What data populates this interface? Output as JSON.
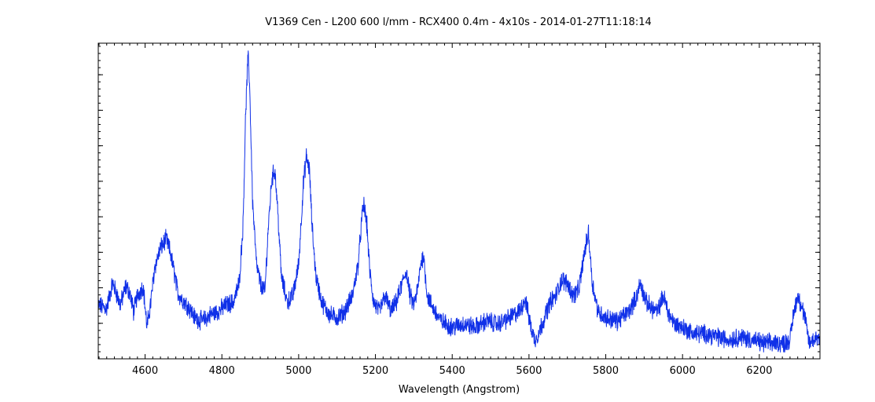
{
  "chart_data": {
    "type": "line",
    "title": "V1369 Cen - L200 600 l/mm - RCX400 0.4m - 4x10s - 2014-01-27T11:18:14",
    "xlabel": "Wavelength (Angstrom)",
    "ylabel": "",
    "xlim": [
      4478,
      6358
    ],
    "ylim": [
      0.0,
      1.0
    ],
    "y_tick_labels_shown": false,
    "grid": false,
    "x_ticks": [
      4600,
      4800,
      5000,
      5200,
      5400,
      5600,
      5800,
      6000,
      6200
    ],
    "x_tick_labels": [
      "4600",
      "4800",
      "5000",
      "5200",
      "5400",
      "5600",
      "5800",
      "6000",
      "6200"
    ],
    "series": [
      {
        "color": "#1030e8",
        "x": [
          4478,
          4500,
          4515,
          4525,
          4535,
          4550,
          4560,
          4570,
          4580,
          4595,
          4605,
          4615,
          4625,
          4640,
          4655,
          4665,
          4675,
          4685,
          4695,
          4710,
          4730,
          4750,
          4770,
          4790,
          4810,
          4830,
          4845,
          4855,
          4862,
          4868,
          4872,
          4880,
          4890,
          4900,
          4912,
          4920,
          4930,
          4938,
          4945,
          4955,
          4970,
          4985,
          5000,
          5012,
          5020,
          5028,
          5035,
          5045,
          5060,
          5080,
          5100,
          5120,
          5140,
          5155,
          5165,
          5170,
          5178,
          5185,
          5195,
          5210,
          5225,
          5240,
          5255,
          5270,
          5280,
          5290,
          5300,
          5310,
          5318,
          5325,
          5335,
          5350,
          5370,
          5400,
          5430,
          5460,
          5490,
          5520,
          5550,
          5575,
          5590,
          5605,
          5615,
          5625,
          5640,
          5655,
          5670,
          5685,
          5700,
          5715,
          5730,
          5745,
          5755,
          5765,
          5780,
          5800,
          5830,
          5860,
          5878,
          5890,
          5905,
          5920,
          5935,
          5950,
          5965,
          5980,
          6000,
          6030,
          6060,
          6090,
          6120,
          6150,
          6180,
          6210,
          6240,
          6265,
          6280,
          6290,
          6300,
          6310,
          6320,
          6330,
          6340,
          6350,
          6358
        ],
        "y": [
          0.17,
          0.16,
          0.24,
          0.21,
          0.17,
          0.23,
          0.21,
          0.15,
          0.2,
          0.23,
          0.1,
          0.18,
          0.29,
          0.35,
          0.38,
          0.34,
          0.28,
          0.21,
          0.19,
          0.17,
          0.13,
          0.12,
          0.14,
          0.15,
          0.17,
          0.18,
          0.24,
          0.42,
          0.78,
          0.96,
          0.88,
          0.5,
          0.3,
          0.24,
          0.21,
          0.4,
          0.57,
          0.6,
          0.48,
          0.26,
          0.18,
          0.2,
          0.3,
          0.55,
          0.64,
          0.6,
          0.42,
          0.26,
          0.18,
          0.14,
          0.13,
          0.15,
          0.2,
          0.3,
          0.45,
          0.49,
          0.42,
          0.28,
          0.18,
          0.15,
          0.2,
          0.15,
          0.18,
          0.24,
          0.28,
          0.2,
          0.17,
          0.22,
          0.3,
          0.33,
          0.2,
          0.16,
          0.12,
          0.1,
          0.11,
          0.1,
          0.12,
          0.11,
          0.13,
          0.15,
          0.19,
          0.1,
          0.06,
          0.08,
          0.13,
          0.18,
          0.2,
          0.25,
          0.24,
          0.2,
          0.22,
          0.34,
          0.4,
          0.24,
          0.15,
          0.13,
          0.12,
          0.15,
          0.19,
          0.24,
          0.18,
          0.16,
          0.15,
          0.2,
          0.14,
          0.11,
          0.1,
          0.08,
          0.08,
          0.07,
          0.06,
          0.07,
          0.06,
          0.05,
          0.05,
          0.05,
          0.06,
          0.15,
          0.2,
          0.17,
          0.12,
          0.05,
          0.06,
          0.07,
          0.06
        ]
      }
    ]
  }
}
